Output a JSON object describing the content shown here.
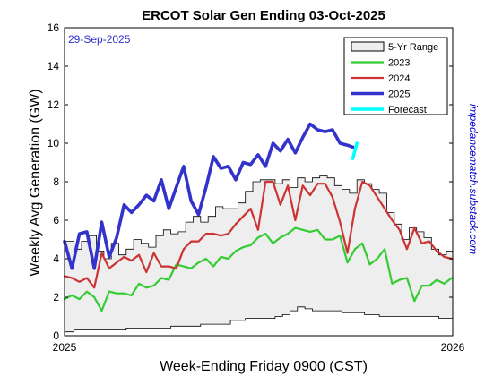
{
  "chart_data": {
    "type": "line",
    "title": "ERCOT Solar Gen Ending 03-Oct-2025",
    "xlabel": "Week-Ending Friday 0900 (CST)",
    "ylabel": "Weekly Avg Generation (GW)",
    "date_annotation": "29-Sep-2025",
    "credit": "impedancematch.substack.com",
    "xlim": [
      "2025-01-01",
      "2026-01-01"
    ],
    "x_ticks": [
      "2025",
      "2026"
    ],
    "ylim": [
      0,
      16
    ],
    "y_ticks": [
      0,
      2,
      4,
      6,
      8,
      10,
      12,
      14,
      16
    ],
    "grid": false,
    "legend_placement": "top-right",
    "legend": [
      "5-Yr Range",
      "2023",
      "2024",
      "2025",
      "Forecast"
    ],
    "colors": {
      "range_fill": "#eeeeee",
      "range_edge": "#000000",
      "2023": "#33cc33",
      "2024": "#cc3333",
      "2025": "#3333cc",
      "forecast": "#00ffff",
      "date_annotation": "#3333cc",
      "credit": "#0000cc"
    },
    "range": {
      "x": [
        "2025-01-01",
        "2025-01-10",
        "2025-01-17",
        "2025-01-24",
        "2025-01-31",
        "2025-02-07",
        "2025-02-14",
        "2025-02-21",
        "2025-02-28",
        "2025-03-07",
        "2025-03-14",
        "2025-03-21",
        "2025-03-28",
        "2025-04-04",
        "2025-04-11",
        "2025-04-18",
        "2025-04-25",
        "2025-05-02",
        "2025-05-09",
        "2025-05-16",
        "2025-05-23",
        "2025-05-30",
        "2025-06-06",
        "2025-06-13",
        "2025-06-20",
        "2025-06-27",
        "2025-07-04",
        "2025-07-11",
        "2025-07-18",
        "2025-07-25",
        "2025-08-01",
        "2025-08-08",
        "2025-08-15",
        "2025-08-22",
        "2025-08-29",
        "2025-09-05",
        "2025-09-12",
        "2025-09-19",
        "2025-09-26",
        "2025-10-03",
        "2025-10-10",
        "2025-10-17",
        "2025-10-24",
        "2025-10-31",
        "2025-11-07",
        "2025-11-14",
        "2025-11-21",
        "2025-11-28",
        "2025-12-05",
        "2025-12-12",
        "2025-12-19",
        "2025-12-26",
        "2026-01-01"
      ],
      "high": [
        4.9,
        4.5,
        4.9,
        5.2,
        4.4,
        4.0,
        4.8,
        4.2,
        4.5,
        5.0,
        4.8,
        4.6,
        5.2,
        5.5,
        5.3,
        5.4,
        5.9,
        6.2,
        5.9,
        6.2,
        6.7,
        6.6,
        6.6,
        6.9,
        7.5,
        8.0,
        8.1,
        8.1,
        7.9,
        8.1,
        7.7,
        8.2,
        8.0,
        8.2,
        8.3,
        8.2,
        7.8,
        7.6,
        7.4,
        8.1,
        7.9,
        7.6,
        7.4,
        6.4,
        5.8,
        5.0,
        5.6,
        5.4,
        5.1,
        4.5,
        4.2,
        4.4,
        4.2
      ],
      "low": [
        0.2,
        0.3,
        0.3,
        0.3,
        0.3,
        0.3,
        0.3,
        0.3,
        0.4,
        0.4,
        0.4,
        0.4,
        0.4,
        0.4,
        0.5,
        0.5,
        0.5,
        0.5,
        0.6,
        0.6,
        0.6,
        0.6,
        0.8,
        0.8,
        0.9,
        0.9,
        0.9,
        0.9,
        1.0,
        1.1,
        1.3,
        1.5,
        1.4,
        1.3,
        1.3,
        1.3,
        1.3,
        1.2,
        1.2,
        1.2,
        1.1,
        1.1,
        1.0,
        1.0,
        1.0,
        1.0,
        1.0,
        1.0,
        1.0,
        1.0,
        0.9,
        0.9,
        0.9
      ]
    },
    "series": [
      {
        "name": "2023",
        "x": [
          "2025-01-01",
          "2025-01-08",
          "2025-01-15",
          "2025-01-22",
          "2025-01-29",
          "2025-02-05",
          "2025-02-12",
          "2025-02-19",
          "2025-02-26",
          "2025-03-05",
          "2025-03-12",
          "2025-03-19",
          "2025-03-26",
          "2025-04-02",
          "2025-04-09",
          "2025-04-16",
          "2025-04-23",
          "2025-04-30",
          "2025-05-07",
          "2025-05-14",
          "2025-05-21",
          "2025-05-28",
          "2025-06-04",
          "2025-06-11",
          "2025-06-18",
          "2025-06-25",
          "2025-07-02",
          "2025-07-09",
          "2025-07-16",
          "2025-07-23",
          "2025-07-30",
          "2025-08-06",
          "2025-08-13",
          "2025-08-20",
          "2025-08-27",
          "2025-09-03",
          "2025-09-10",
          "2025-09-17",
          "2025-09-24",
          "2025-10-01",
          "2025-10-08",
          "2025-10-15",
          "2025-10-22",
          "2025-10-29",
          "2025-11-05",
          "2025-11-12",
          "2025-11-19",
          "2025-11-26",
          "2025-12-03",
          "2025-12-10",
          "2025-12-17",
          "2025-12-24",
          "2025-12-31"
        ],
        "values": [
          1.9,
          2.1,
          1.9,
          2.3,
          2.0,
          1.3,
          2.3,
          2.2,
          2.2,
          2.1,
          2.7,
          2.5,
          2.6,
          3.0,
          2.9,
          3.7,
          3.6,
          3.5,
          3.8,
          4.0,
          3.6,
          4.1,
          4.0,
          4.4,
          4.6,
          4.7,
          5.1,
          5.3,
          4.8,
          5.1,
          5.3,
          5.6,
          5.5,
          5.4,
          5.5,
          5.0,
          5.0,
          5.2,
          3.8,
          4.5,
          4.8,
          3.7,
          4.0,
          4.5,
          2.7,
          2.9,
          3.0,
          1.8,
          2.6,
          2.6,
          2.9,
          2.7,
          3.0
        ]
      },
      {
        "name": "2024",
        "x": [
          "2025-01-01",
          "2025-01-08",
          "2025-01-15",
          "2025-01-22",
          "2025-01-29",
          "2025-02-05",
          "2025-02-12",
          "2025-02-19",
          "2025-02-26",
          "2025-03-05",
          "2025-03-12",
          "2025-03-19",
          "2025-03-26",
          "2025-04-02",
          "2025-04-09",
          "2025-04-16",
          "2025-04-23",
          "2025-04-30",
          "2025-05-07",
          "2025-05-14",
          "2025-05-21",
          "2025-05-28",
          "2025-06-04",
          "2025-06-11",
          "2025-06-18",
          "2025-06-25",
          "2025-07-02",
          "2025-07-09",
          "2025-07-16",
          "2025-07-23",
          "2025-07-30",
          "2025-08-06",
          "2025-08-13",
          "2025-08-20",
          "2025-08-27",
          "2025-09-03",
          "2025-09-10",
          "2025-09-17",
          "2025-09-24",
          "2025-10-01",
          "2025-10-08",
          "2025-10-15",
          "2025-10-22",
          "2025-10-29",
          "2025-11-05",
          "2025-11-12",
          "2025-11-19",
          "2025-11-26",
          "2025-12-03",
          "2025-12-10",
          "2025-12-17",
          "2025-12-24",
          "2025-12-31"
        ],
        "values": [
          3.1,
          3.0,
          2.8,
          3.0,
          2.5,
          4.3,
          3.5,
          3.8,
          4.1,
          3.9,
          4.2,
          3.3,
          4.3,
          3.6,
          3.6,
          3.5,
          4.5,
          4.9,
          4.9,
          5.3,
          5.3,
          5.2,
          5.3,
          5.8,
          6.2,
          6.6,
          5.5,
          8.0,
          8.0,
          6.8,
          7.8,
          6.0,
          7.8,
          7.3,
          7.9,
          7.9,
          7.2,
          5.9,
          4.3,
          6.6,
          8.0,
          7.8,
          7.2,
          6.6,
          6.0,
          5.5,
          4.5,
          5.6,
          4.8,
          4.9,
          4.4,
          4.1,
          4.0
        ]
      },
      {
        "name": "2025",
        "x": [
          "2025-01-01",
          "2025-01-08",
          "2025-01-15",
          "2025-01-22",
          "2025-01-29",
          "2025-02-05",
          "2025-02-12",
          "2025-02-19",
          "2025-02-26",
          "2025-03-05",
          "2025-03-12",
          "2025-03-19",
          "2025-03-26",
          "2025-04-02",
          "2025-04-09",
          "2025-04-16",
          "2025-04-23",
          "2025-04-30",
          "2025-05-07",
          "2025-05-14",
          "2025-05-21",
          "2025-05-28",
          "2025-06-04",
          "2025-06-11",
          "2025-06-18",
          "2025-06-25",
          "2025-07-02",
          "2025-07-09",
          "2025-07-16",
          "2025-07-23",
          "2025-07-30",
          "2025-08-06",
          "2025-08-13",
          "2025-08-20",
          "2025-08-27",
          "2025-09-03",
          "2025-09-10",
          "2025-09-17",
          "2025-09-24",
          "2025-09-29"
        ],
        "values": [
          4.9,
          3.5,
          5.3,
          5.4,
          3.5,
          5.9,
          4.1,
          5.1,
          6.8,
          6.4,
          6.8,
          7.3,
          7.0,
          8.1,
          6.6,
          7.7,
          8.8,
          7.0,
          6.3,
          7.7,
          9.3,
          8.7,
          8.8,
          8.1,
          9.0,
          8.9,
          9.4,
          8.8,
          10.0,
          9.6,
          10.2,
          9.5,
          10.3,
          11.0,
          10.7,
          10.6,
          10.7,
          10.0,
          9.9,
          9.8
        ]
      },
      {
        "name": "Forecast",
        "x": [
          "2025-09-29",
          "2025-10-03"
        ],
        "values": [
          9.2,
          10.0
        ]
      }
    ]
  }
}
